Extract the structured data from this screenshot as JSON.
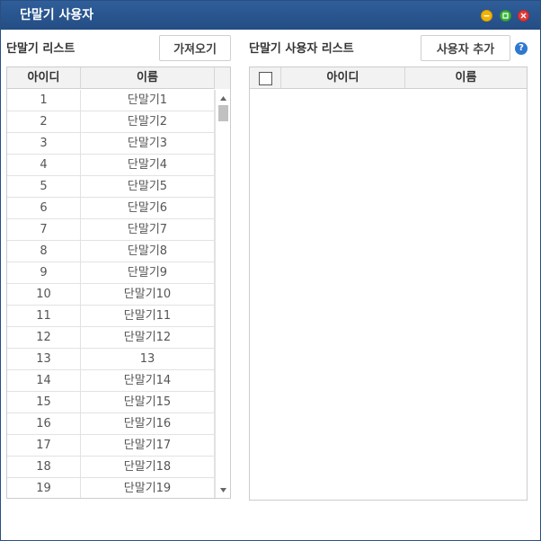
{
  "window": {
    "title": "단말기 사용자",
    "controls": {
      "minimize": "minimize-icon",
      "maximize": "maximize-icon",
      "close": "close-icon"
    }
  },
  "left_panel": {
    "title": "단말기 리스트",
    "fetch_button": "가져오기",
    "columns": [
      "아이디",
      "이름"
    ],
    "rows": [
      [
        "1",
        "단말기1"
      ],
      [
        "2",
        "단말기2"
      ],
      [
        "3",
        "단말기3"
      ],
      [
        "4",
        "단말기4"
      ],
      [
        "5",
        "단말기5"
      ],
      [
        "6",
        "단말기6"
      ],
      [
        "7",
        "단말기7"
      ],
      [
        "8",
        "단말기8"
      ],
      [
        "9",
        "단말기9"
      ],
      [
        "10",
        "단말기10"
      ],
      [
        "11",
        "단말기11"
      ],
      [
        "12",
        "단말기12"
      ],
      [
        "13",
        "13"
      ],
      [
        "14",
        "단말기14"
      ],
      [
        "15",
        "단말기15"
      ],
      [
        "16",
        "단말기16"
      ],
      [
        "17",
        "단말기17"
      ],
      [
        "18",
        "단말기18"
      ],
      [
        "19",
        "단말기19"
      ]
    ]
  },
  "right_panel": {
    "title": "단말기 사용자 리스트",
    "add_button": "사용자 추가",
    "help_icon": "?",
    "columns": [
      "아이디",
      "이름"
    ],
    "rows": []
  }
}
